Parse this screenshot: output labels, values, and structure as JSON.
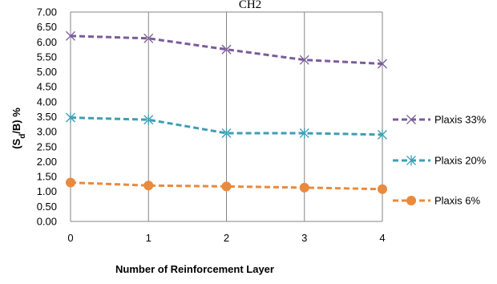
{
  "chart_data": {
    "type": "line",
    "title": "",
    "top_text": "CH2",
    "xlabel": "Number of Reinforcement Layer",
    "ylabel": "(S_d/B) %",
    "ylabel_parts": {
      "open": "(S",
      "sub": "d",
      "close": "/B) %"
    },
    "x": [
      0,
      1,
      2,
      3,
      4
    ],
    "xlim": [
      0,
      4
    ],
    "ylim": [
      0.0,
      7.0
    ],
    "ytick_step": 0.5,
    "grid": {
      "vertical": true,
      "horizontal": false
    },
    "legend_position": "right",
    "series": [
      {
        "name": "Plaxis 33%",
        "values": [
          6.2,
          6.12,
          5.75,
          5.4,
          5.27
        ],
        "color": "#7a5c9b",
        "marker": "x"
      },
      {
        "name": "Plaxis 20%",
        "values": [
          3.47,
          3.4,
          2.95,
          2.95,
          2.9
        ],
        "color": "#3e9eb4",
        "marker": "asterisk"
      },
      {
        "name": "Plaxis 6%",
        "values": [
          1.3,
          1.2,
          1.17,
          1.13,
          1.08
        ],
        "color": "#ea8a3c",
        "marker": "circle"
      }
    ]
  }
}
